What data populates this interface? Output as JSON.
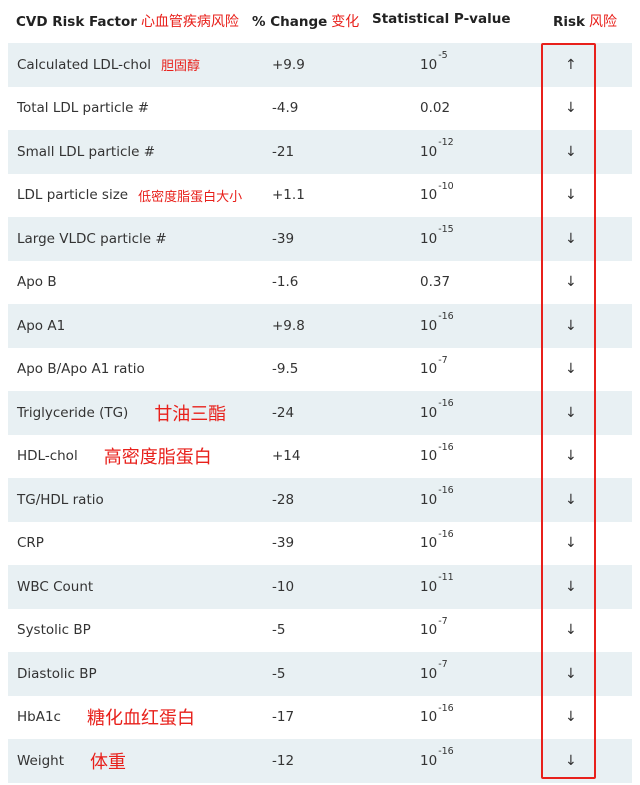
{
  "header": {
    "factor_label": "CVD Risk Factor",
    "factor_cn": "心血管疾病风险",
    "change_label": "% Change",
    "change_cn": "变化",
    "pvalue_label": "Statistical P-value",
    "risk_label": "Risk",
    "risk_cn": "风险"
  },
  "rows": [
    {
      "factor": "Calculated LDL-chol",
      "note": "胆固醇",
      "note_size": "sm",
      "change": "+9.9",
      "p_base": "10",
      "p_exp": "-5",
      "risk": "↑"
    },
    {
      "factor": "Total LDL particle #",
      "note": "",
      "note_size": "sm",
      "change": "-4.9",
      "p_base": "0.02",
      "p_exp": "",
      "risk": "↓"
    },
    {
      "factor": "Small LDL particle #",
      "note": "",
      "note_size": "sm",
      "change": "-21",
      "p_base": "10",
      "p_exp": "-12",
      "risk": "↓"
    },
    {
      "factor": "LDL particle size",
      "note": "低密度脂蛋白大小",
      "note_size": "sm",
      "change": "+1.1",
      "p_base": "10",
      "p_exp": "-10",
      "risk": "↓"
    },
    {
      "factor": "Large VLDC particle #",
      "note": "",
      "note_size": "sm",
      "change": "-39",
      "p_base": "10",
      "p_exp": "-15",
      "risk": "↓"
    },
    {
      "factor": "Apo B",
      "note": "",
      "note_size": "sm",
      "change": "-1.6",
      "p_base": "0.37",
      "p_exp": "",
      "risk": "↓"
    },
    {
      "factor": "Apo A1",
      "note": "",
      "note_size": "sm",
      "change": "+9.8",
      "p_base": "10",
      "p_exp": "-16",
      "risk": "↓"
    },
    {
      "factor": "Apo B/Apo A1 ratio",
      "note": "",
      "note_size": "sm",
      "change": "-9.5",
      "p_base": "10",
      "p_exp": "-7",
      "risk": "↓"
    },
    {
      "factor": "Triglyceride (TG)",
      "note": "甘油三酯",
      "note_size": "lg",
      "change": "-24",
      "p_base": "10",
      "p_exp": "-16",
      "risk": "↓"
    },
    {
      "factor": "HDL-chol",
      "note": "高密度脂蛋白",
      "note_size": "lg",
      "change": "+14",
      "p_base": "10",
      "p_exp": "-16",
      "risk": "↓"
    },
    {
      "factor": "TG/HDL ratio",
      "note": "",
      "note_size": "sm",
      "change": "-28",
      "p_base": "10",
      "p_exp": "-16",
      "risk": "↓"
    },
    {
      "factor": "CRP",
      "note": "",
      "note_size": "sm",
      "change": "-39",
      "p_base": "10",
      "p_exp": "-16",
      "risk": "↓"
    },
    {
      "factor": "WBC Count",
      "note": "",
      "note_size": "sm",
      "change": "-10",
      "p_base": "10",
      "p_exp": "-11",
      "risk": "↓"
    },
    {
      "factor": "Systolic BP",
      "note": "",
      "note_size": "sm",
      "change": "-5",
      "p_base": "10",
      "p_exp": "-7",
      "risk": "↓"
    },
    {
      "factor": "Diastolic BP",
      "note": "",
      "note_size": "sm",
      "change": "-5",
      "p_base": "10",
      "p_exp": "-7",
      "risk": "↓"
    },
    {
      "factor": "HbA1c",
      "note": "糖化血红蛋白",
      "note_size": "lg",
      "change": "-17",
      "p_base": "10",
      "p_exp": "-16",
      "risk": "↓"
    },
    {
      "factor": "Weight",
      "note": "体重",
      "note_size": "lg",
      "change": "-12",
      "p_base": "10",
      "p_exp": "-16",
      "risk": "↓"
    }
  ],
  "colors": {
    "annotation": "#e8201b",
    "row_shade": "#e8f0f3"
  }
}
